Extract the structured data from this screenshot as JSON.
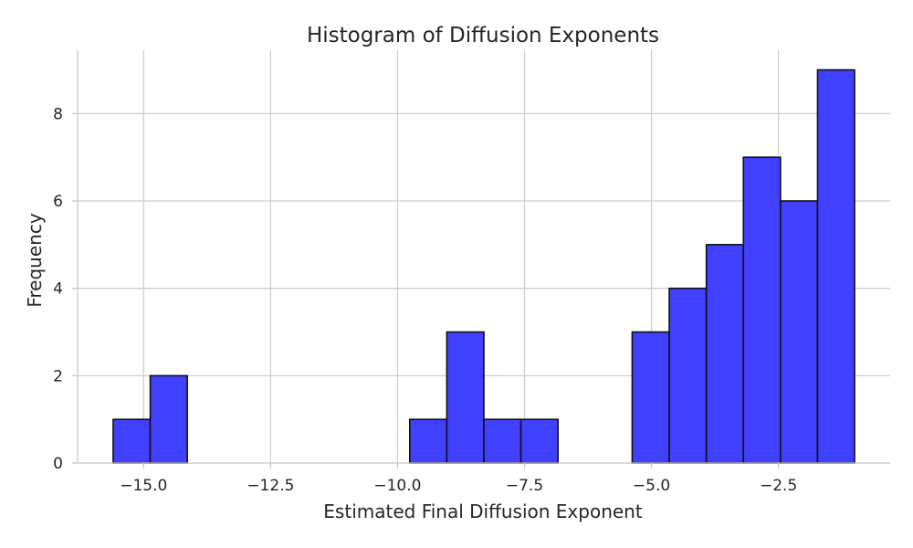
{
  "chart_data": {
    "type": "bar",
    "title": "Histogram of Diffusion Exponents",
    "xlabel": "Estimated Final Diffusion Exponent",
    "ylabel": "Frequency",
    "xlim": [
      -16.3,
      -0.3
    ],
    "ylim": [
      0,
      9.45
    ],
    "xticks": [
      -15.0,
      -12.5,
      -10.0,
      -7.5,
      -5.0,
      -2.5
    ],
    "xtick_labels": [
      "−15.0",
      "−12.5",
      "−10.0",
      "−7.5",
      "−5.0",
      "−2.5"
    ],
    "yticks": [
      0,
      2,
      4,
      6,
      8
    ],
    "ytick_labels": [
      "0",
      "2",
      "4",
      "6",
      "8"
    ],
    "bins": [
      {
        "x0": -15.6,
        "x1": -14.87,
        "count": 1
      },
      {
        "x0": -14.87,
        "x1": -14.14,
        "count": 2
      },
      {
        "x0": -14.14,
        "x1": -13.41,
        "count": 0
      },
      {
        "x0": -13.41,
        "x1": -12.68,
        "count": 0
      },
      {
        "x0": -12.68,
        "x1": -11.95,
        "count": 0
      },
      {
        "x0": -11.95,
        "x1": -11.22,
        "count": 0
      },
      {
        "x0": -11.22,
        "x1": -10.49,
        "count": 0
      },
      {
        "x0": -10.49,
        "x1": -9.76,
        "count": 0
      },
      {
        "x0": -9.76,
        "x1": -9.03,
        "count": 1
      },
      {
        "x0": -9.03,
        "x1": -8.3,
        "count": 3
      },
      {
        "x0": -8.3,
        "x1": -7.57,
        "count": 1
      },
      {
        "x0": -7.57,
        "x1": -6.84,
        "count": 1
      },
      {
        "x0": -6.84,
        "x1": -6.11,
        "count": 0
      },
      {
        "x0": -6.11,
        "x1": -5.38,
        "count": 0
      },
      {
        "x0": -5.38,
        "x1": -4.65,
        "count": 3
      },
      {
        "x0": -4.65,
        "x1": -3.92,
        "count": 4
      },
      {
        "x0": -3.92,
        "x1": -3.19,
        "count": 5
      },
      {
        "x0": -3.19,
        "x1": -2.46,
        "count": 7
      },
      {
        "x0": -2.46,
        "x1": -1.73,
        "count": 6
      },
      {
        "x0": -1.73,
        "x1": -1.0,
        "count": 9
      }
    ],
    "bar_color": "#4040ff",
    "bar_edge_color": "#111111",
    "grid": true,
    "legend": "none"
  }
}
